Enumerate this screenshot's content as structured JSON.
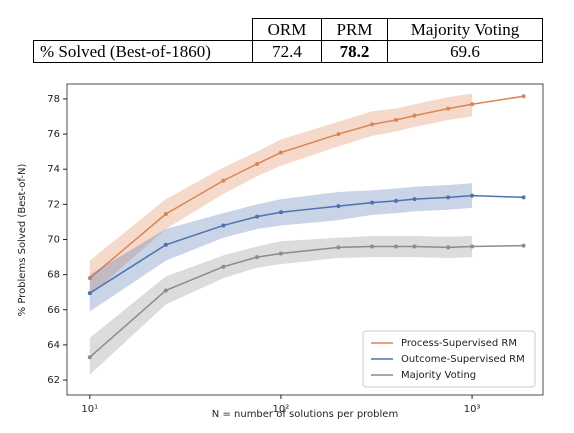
{
  "table": {
    "header": [
      "ORM",
      "PRM",
      "Majority Voting"
    ],
    "rows": [
      {
        "label": "% Solved (Best-of-1860)",
        "values": [
          72.4,
          78.2,
          69.6
        ]
      }
    ]
  },
  "chart_data": {
    "type": "line",
    "xlabel": "N = number of solutions per problem",
    "ylabel": "% Problems Solved (Best-of-N)",
    "x": [
      10,
      25,
      50,
      75,
      100,
      200,
      300,
      400,
      500,
      750,
      1000,
      1860
    ],
    "xscale": "log",
    "xlim": [
      7.6,
      2350
    ],
    "xticks": [
      {
        "value": 10,
        "label": "10¹"
      },
      {
        "value": 100,
        "label": "10²"
      },
      {
        "value": 1000,
        "label": "10³"
      }
    ],
    "ylim": [
      61.15,
      78.85
    ],
    "yticks": [
      62,
      64,
      66,
      68,
      70,
      72,
      74,
      76,
      78
    ],
    "legend": "lower right",
    "series": [
      {
        "name": "Process-Supervised RM",
        "color": "#dd8452",
        "values": [
          67.8,
          71.45,
          73.35,
          74.3,
          74.95,
          76.0,
          76.55,
          76.8,
          77.05,
          77.45,
          77.7,
          78.15
        ],
        "lower": [
          66.8,
          70.6,
          72.6,
          73.6,
          74.2,
          75.3,
          75.9,
          76.15,
          76.4,
          76.8,
          77.0,
          null
        ],
        "upper": [
          68.8,
          72.3,
          74.1,
          75.0,
          75.7,
          76.7,
          77.3,
          77.45,
          77.7,
          78.1,
          78.3,
          null
        ]
      },
      {
        "name": "Outcome-Supervised RM",
        "color": "#4c72b0",
        "values": [
          66.95,
          69.7,
          70.8,
          71.3,
          71.55,
          71.9,
          72.1,
          72.2,
          72.3,
          72.4,
          72.5,
          72.4
        ],
        "lower": [
          65.9,
          68.8,
          70.1,
          70.6,
          70.8,
          71.1,
          71.4,
          71.5,
          71.6,
          71.7,
          71.8,
          null
        ],
        "upper": [
          68.0,
          70.6,
          71.5,
          72.0,
          72.3,
          72.7,
          72.8,
          72.9,
          73.0,
          73.1,
          73.2,
          null
        ]
      },
      {
        "name": "Majority Voting",
        "color": "#8c8c8c",
        "values": [
          63.3,
          67.1,
          68.45,
          69.0,
          69.2,
          69.55,
          69.6,
          69.6,
          69.6,
          69.55,
          69.6,
          69.65
        ],
        "lower": [
          62.3,
          66.3,
          67.8,
          68.4,
          68.6,
          68.95,
          69.0,
          69.0,
          69.0,
          68.95,
          69.0,
          null
        ],
        "upper": [
          64.4,
          67.9,
          69.1,
          69.6,
          69.9,
          70.1,
          70.2,
          70.2,
          70.2,
          70.15,
          70.2,
          null
        ]
      }
    ]
  }
}
